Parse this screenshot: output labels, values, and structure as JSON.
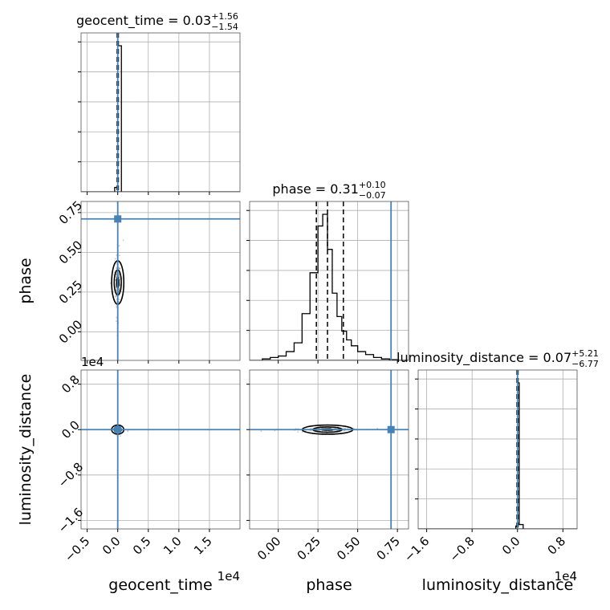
{
  "chart_data": {
    "type": "corner",
    "parameters": [
      "geocent_time",
      "phase",
      "luminosity_distance"
    ],
    "axis_labels": {
      "geocent_time": "geocent_time",
      "phase": "phase",
      "luminosity_distance": "luminosity_distance"
    },
    "axis_offsets": {
      "geocent_time": "1e4",
      "luminosity_distance": "1e4"
    },
    "ranges": {
      "geocent_time": [
        -0.6,
        2.0
      ],
      "phase": [
        -0.18,
        0.82
      ],
      "luminosity_distance": [
        -1.75,
        1.05
      ]
    },
    "ticks": {
      "geocent_time": {
        "values": [
          -0.5,
          0.0,
          0.5,
          1.0,
          1.5
        ],
        "labels": [
          "−0.5",
          "0.0",
          "0.5",
          "1.0",
          "1.5"
        ]
      },
      "phase": {
        "values": [
          0.0,
          0.25,
          0.5,
          0.75
        ],
        "labels": [
          "0.00",
          "0.25",
          "0.50",
          "0.75"
        ]
      },
      "luminosity_distance": {
        "values": [
          -1.6,
          -0.8,
          0.0,
          0.8
        ],
        "labels": [
          "−1.6",
          "−0.8",
          "0.0",
          "0.8"
        ]
      }
    },
    "titles": [
      {
        "parameter": "geocent_time",
        "main": "geocent_time = 0.03",
        "upper": "+1.56",
        "lower": "−1.54"
      },
      {
        "parameter": "phase",
        "main": "phase = 0.31",
        "upper": "+0.10",
        "lower": "−0.07"
      },
      {
        "parameter": "luminosity_distance",
        "main": "luminosity_distance = 0.07",
        "upper": "+5.21",
        "lower": "−6.77"
      }
    ],
    "truths": {
      "geocent_time": 0.0,
      "phase": 0.71,
      "luminosity_distance": 0.0
    },
    "quantiles": {
      "geocent_time": [
        -0.01,
        0.0,
        0.01
      ],
      "phase": [
        0.24,
        0.31,
        0.41
      ],
      "luminosity_distance": [
        -0.01,
        0.0,
        0.01
      ]
    },
    "histograms": {
      "geocent_time": {
        "edges": [
          -0.05,
          0.0,
          0.06
        ],
        "counts": [
          0.03,
          1.0
        ]
      },
      "phase": {
        "edges": [
          -0.1,
          -0.05,
          0.0,
          0.05,
          0.1,
          0.15,
          0.2,
          0.25,
          0.28,
          0.31,
          0.34,
          0.37,
          0.4,
          0.43,
          0.46,
          0.5,
          0.55,
          0.6,
          0.65,
          0.7,
          0.75
        ],
        "counts": [
          0.01,
          0.02,
          0.03,
          0.06,
          0.12,
          0.32,
          0.6,
          0.92,
          1.0,
          0.76,
          0.46,
          0.3,
          0.2,
          0.14,
          0.1,
          0.06,
          0.04,
          0.02,
          0.01,
          0.005
        ]
      },
      "luminosity_distance": {
        "edges": [
          -0.03,
          0.0,
          0.03,
          0.1
        ],
        "counts": [
          0.02,
          1.0,
          0.03
        ]
      }
    },
    "show_grid": true,
    "truth_color": "#4682b4",
    "line_color": "#000000",
    "sample_color": "#808080"
  }
}
